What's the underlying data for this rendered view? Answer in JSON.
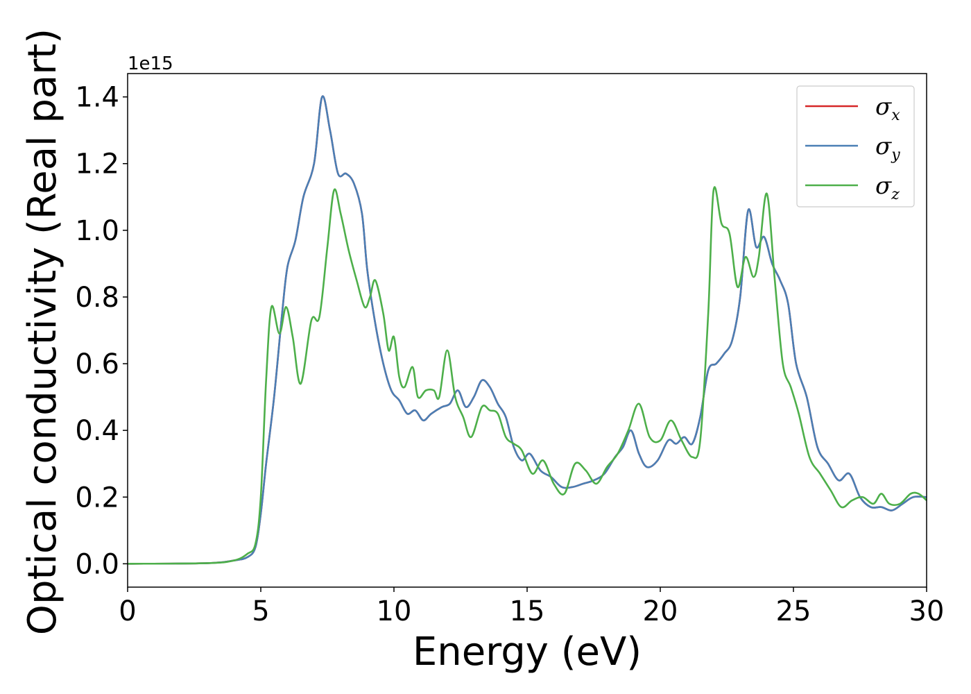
{
  "chart_data": {
    "type": "line",
    "title": "",
    "xlabel": "Energy (eV)",
    "ylabel": "Optical conductivity (Real part)",
    "y_offset_label": "1e15",
    "xlim": [
      0,
      30
    ],
    "ylim": [
      -0.07,
      1.47
    ],
    "xticks": [
      0,
      5,
      10,
      15,
      20,
      25,
      30
    ],
    "xtick_labels": [
      "0",
      "5",
      "10",
      "15",
      "20",
      "25",
      "30"
    ],
    "yticks": [
      0.0,
      0.2,
      0.4,
      0.6,
      0.8,
      1.0,
      1.2,
      1.4
    ],
    "ytick_labels": [
      "0.0",
      "0.2",
      "0.4",
      "0.6",
      "0.8",
      "1.0",
      "1.2",
      "1.4"
    ],
    "grid": false,
    "legend_position": "top-right",
    "series": [
      {
        "name": "σx",
        "symbol": "σ",
        "subscript": "x",
        "color": "#d62728",
        "x": [
          0,
          3,
          4,
          4.5,
          4.8,
          5.0,
          5.2,
          5.5,
          5.8,
          6.0,
          6.3,
          6.6,
          7.0,
          7.3,
          7.6,
          7.9,
          8.2,
          8.5,
          8.8,
          9.0,
          9.3,
          9.6,
          9.9,
          10.2,
          10.5,
          10.8,
          11.1,
          11.4,
          11.8,
          12.1,
          12.4,
          12.7,
          13.0,
          13.3,
          13.6,
          13.9,
          14.2,
          14.5,
          14.8,
          15.1,
          15.5,
          15.9,
          16.3,
          16.7,
          17.1,
          17.5,
          17.9,
          18.3,
          18.6,
          18.9,
          19.2,
          19.5,
          19.9,
          20.3,
          20.6,
          20.9,
          21.2,
          21.5,
          21.8,
          22.1,
          22.4,
          22.7,
          23.0,
          23.3,
          23.6,
          23.9,
          24.2,
          24.5,
          24.8,
          25.1,
          25.5,
          25.9,
          26.3,
          26.7,
          27.1,
          27.5,
          27.9,
          28.3,
          28.7,
          29.1,
          29.5,
          30.0
        ],
        "values": [
          0.0,
          0.002,
          0.01,
          0.02,
          0.05,
          0.15,
          0.3,
          0.5,
          0.75,
          0.89,
          0.97,
          1.1,
          1.2,
          1.4,
          1.3,
          1.17,
          1.17,
          1.14,
          1.05,
          0.88,
          0.72,
          0.6,
          0.52,
          0.49,
          0.45,
          0.46,
          0.43,
          0.45,
          0.47,
          0.48,
          0.52,
          0.47,
          0.5,
          0.55,
          0.53,
          0.48,
          0.44,
          0.35,
          0.31,
          0.33,
          0.28,
          0.26,
          0.23,
          0.23,
          0.24,
          0.25,
          0.27,
          0.32,
          0.35,
          0.4,
          0.33,
          0.29,
          0.31,
          0.37,
          0.36,
          0.38,
          0.36,
          0.44,
          0.58,
          0.6,
          0.63,
          0.67,
          0.8,
          1.06,
          0.95,
          0.98,
          0.9,
          0.85,
          0.78,
          0.6,
          0.5,
          0.35,
          0.3,
          0.25,
          0.27,
          0.2,
          0.17,
          0.17,
          0.16,
          0.18,
          0.2,
          0.2
        ]
      },
      {
        "name": "σy",
        "symbol": "σ",
        "subscript": "y",
        "color": "#4a7fb5",
        "x": [
          0,
          3,
          4,
          4.5,
          4.8,
          5.0,
          5.2,
          5.5,
          5.8,
          6.0,
          6.3,
          6.6,
          7.0,
          7.3,
          7.6,
          7.9,
          8.2,
          8.5,
          8.8,
          9.0,
          9.3,
          9.6,
          9.9,
          10.2,
          10.5,
          10.8,
          11.1,
          11.4,
          11.8,
          12.1,
          12.4,
          12.7,
          13.0,
          13.3,
          13.6,
          13.9,
          14.2,
          14.5,
          14.8,
          15.1,
          15.5,
          15.9,
          16.3,
          16.7,
          17.1,
          17.5,
          17.9,
          18.3,
          18.6,
          18.9,
          19.2,
          19.5,
          19.9,
          20.3,
          20.6,
          20.9,
          21.2,
          21.5,
          21.8,
          22.1,
          22.4,
          22.7,
          23.0,
          23.3,
          23.6,
          23.9,
          24.2,
          24.5,
          24.8,
          25.1,
          25.5,
          25.9,
          26.3,
          26.7,
          27.1,
          27.5,
          27.9,
          28.3,
          28.7,
          29.1,
          29.5,
          30.0
        ],
        "values": [
          0.0,
          0.002,
          0.01,
          0.02,
          0.05,
          0.15,
          0.3,
          0.5,
          0.75,
          0.89,
          0.97,
          1.1,
          1.2,
          1.4,
          1.3,
          1.17,
          1.17,
          1.14,
          1.05,
          0.88,
          0.72,
          0.6,
          0.52,
          0.49,
          0.45,
          0.46,
          0.43,
          0.45,
          0.47,
          0.48,
          0.52,
          0.47,
          0.5,
          0.55,
          0.53,
          0.48,
          0.44,
          0.35,
          0.31,
          0.33,
          0.28,
          0.26,
          0.23,
          0.23,
          0.24,
          0.25,
          0.27,
          0.32,
          0.35,
          0.4,
          0.33,
          0.29,
          0.31,
          0.37,
          0.36,
          0.38,
          0.36,
          0.44,
          0.58,
          0.6,
          0.63,
          0.67,
          0.8,
          1.06,
          0.95,
          0.98,
          0.9,
          0.85,
          0.78,
          0.6,
          0.5,
          0.35,
          0.3,
          0.25,
          0.27,
          0.2,
          0.17,
          0.17,
          0.16,
          0.18,
          0.2,
          0.2
        ]
      },
      {
        "name": "σz",
        "symbol": "σ",
        "subscript": "z",
        "color": "#4daf4a",
        "x": [
          0,
          3,
          4,
          4.5,
          4.8,
          5.0,
          5.2,
          5.4,
          5.7,
          5.95,
          6.2,
          6.5,
          6.9,
          7.2,
          7.5,
          7.75,
          8.0,
          8.3,
          8.6,
          8.9,
          9.1,
          9.3,
          9.6,
          9.8,
          10.0,
          10.2,
          10.4,
          10.7,
          10.9,
          11.2,
          11.5,
          11.7,
          12.0,
          12.3,
          12.6,
          12.9,
          13.3,
          13.6,
          13.9,
          14.2,
          14.5,
          14.8,
          15.2,
          15.6,
          16.0,
          16.4,
          16.8,
          17.2,
          17.6,
          18.0,
          18.4,
          18.8,
          19.2,
          19.6,
          20.0,
          20.4,
          20.8,
          21.2,
          21.5,
          21.8,
          22.0,
          22.3,
          22.6,
          22.9,
          23.2,
          23.5,
          23.7,
          24.0,
          24.3,
          24.6,
          24.9,
          25.2,
          25.6,
          26.0,
          26.4,
          26.8,
          27.2,
          27.6,
          28.0,
          28.3,
          28.6,
          29.0,
          29.4,
          29.7,
          30.0
        ],
        "values": [
          0.0,
          0.002,
          0.01,
          0.03,
          0.06,
          0.2,
          0.55,
          0.77,
          0.69,
          0.77,
          0.68,
          0.54,
          0.73,
          0.74,
          0.95,
          1.12,
          1.05,
          0.94,
          0.85,
          0.77,
          0.8,
          0.85,
          0.75,
          0.64,
          0.68,
          0.56,
          0.53,
          0.59,
          0.5,
          0.52,
          0.52,
          0.5,
          0.64,
          0.5,
          0.44,
          0.38,
          0.47,
          0.46,
          0.45,
          0.38,
          0.36,
          0.34,
          0.27,
          0.31,
          0.24,
          0.21,
          0.3,
          0.28,
          0.24,
          0.29,
          0.33,
          0.4,
          0.48,
          0.38,
          0.37,
          0.43,
          0.37,
          0.32,
          0.37,
          0.75,
          1.12,
          1.02,
          0.99,
          0.83,
          0.92,
          0.86,
          0.92,
          1.11,
          0.85,
          0.6,
          0.53,
          0.45,
          0.32,
          0.27,
          0.22,
          0.17,
          0.19,
          0.2,
          0.18,
          0.21,
          0.18,
          0.18,
          0.21,
          0.21,
          0.19
        ]
      }
    ]
  }
}
